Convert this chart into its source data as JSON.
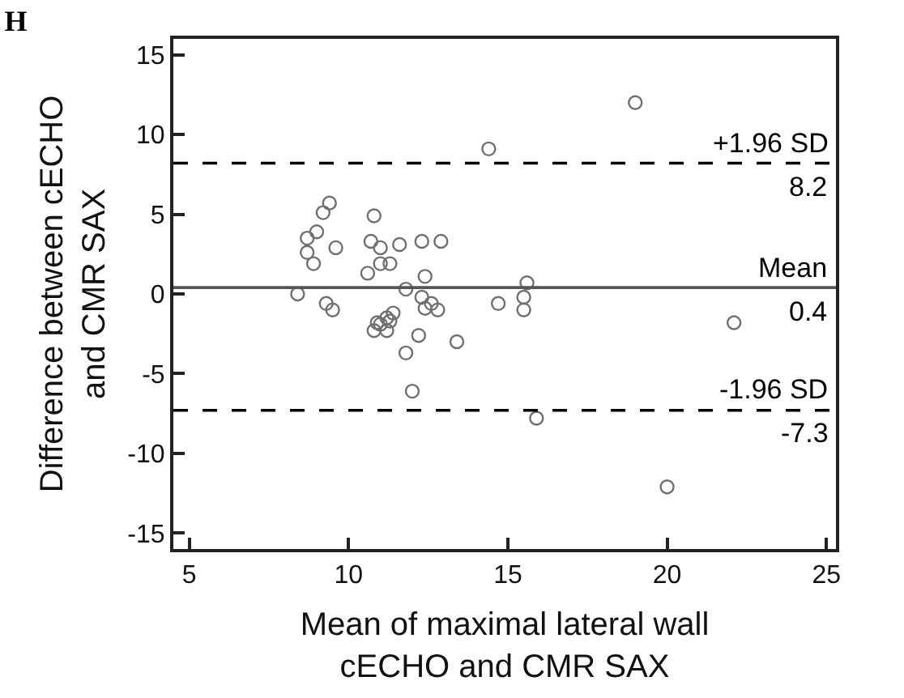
{
  "chart_data": {
    "type": "scatter",
    "title": "H",
    "xlabel": "Mean of maximal lateral wall\ncECHO and CMR SAX",
    "ylabel": "Difference between cECHO\nand CMR SAX",
    "x": [
      8.4,
      8.7,
      8.7,
      8.9,
      9.0,
      9.2,
      9.4,
      9.6,
      9.3,
      9.5,
      10.8,
      10.7,
      10.6,
      11.0,
      11.0,
      11.3,
      11.6,
      12.3,
      12.9,
      11.8,
      12.4,
      12.3,
      12.6,
      12.4,
      12.8,
      11.4,
      11.2,
      11.3,
      10.9,
      11.0,
      10.8,
      11.2,
      12.2,
      13.4,
      11.8,
      12.0,
      14.4,
      14.7,
      15.6,
      15.5,
      15.5,
      15.9,
      19.0,
      20.0,
      22.1
    ],
    "series": [
      {
        "color": "#707070",
        "values": [
          0.0,
          3.5,
          2.6,
          1.9,
          3.9,
          5.1,
          5.7,
          2.9,
          -0.6,
          -1.0,
          4.9,
          3.3,
          1.3,
          2.9,
          1.9,
          1.9,
          3.1,
          3.3,
          3.3,
          0.3,
          1.1,
          -0.2,
          -0.6,
          -0.9,
          -1.0,
          -1.2,
          -1.5,
          -1.7,
          -1.8,
          -1.9,
          -2.3,
          -2.3,
          -2.6,
          -3.0,
          -3.7,
          -6.1,
          9.1,
          -0.6,
          0.7,
          -0.2,
          -1.0,
          -7.8,
          12.0,
          -12.1,
          -1.8
        ]
      }
    ],
    "marker": "circle",
    "xlim": [
      4.5,
      25.3
    ],
    "xticks": [
      5,
      10,
      15,
      20,
      25
    ],
    "ylim": [
      -16,
      16
    ],
    "yticks": [
      -15,
      -10,
      -5,
      0,
      5,
      10,
      15
    ],
    "ref_lines": [
      {
        "axis": "y",
        "value": 8.2,
        "label": "+1.96 SD",
        "color": "#000000",
        "line_style": "dashed"
      },
      {
        "axis": "y",
        "value": 0.4,
        "label": "Mean",
        "color": "#555555",
        "line_style": "solid"
      },
      {
        "axis": "y",
        "value": -7.3,
        "label": "-1.96 SD",
        "color": "#000000",
        "line_style": "dashed"
      }
    ],
    "annotations": [
      {
        "text": "8.2",
        "y": 8.2
      },
      {
        "text": "0.4",
        "y": 0.4
      },
      {
        "text": "-7.3",
        "y": -7.3
      }
    ]
  }
}
